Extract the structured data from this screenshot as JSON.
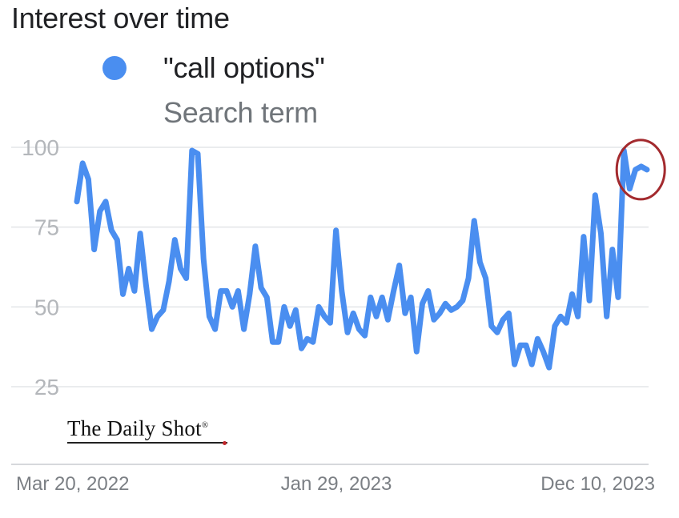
{
  "header": {
    "title": "Interest over time",
    "legend_label": "\"call options\"",
    "legend_sub": "Search term"
  },
  "watermark": {
    "text": "The Daily Shot",
    "mark": "®"
  },
  "colors": {
    "series": "#4a8ef0",
    "grid": "#e3e5e8",
    "highlight_circle": "#a32a2e"
  },
  "chart_data": {
    "type": "line",
    "title": "Interest over time",
    "series": [
      {
        "name": "\"call options\"",
        "x": [
          "2022-03-20",
          "2022-03-27",
          "2022-04-03",
          "2022-04-10",
          "2022-04-17",
          "2022-04-24",
          "2022-05-01",
          "2022-05-08",
          "2022-05-15",
          "2022-05-22",
          "2022-05-29",
          "2022-06-05",
          "2022-06-12",
          "2022-06-19",
          "2022-06-26",
          "2022-07-03",
          "2022-07-10",
          "2022-07-17",
          "2022-07-24",
          "2022-07-31",
          "2022-08-07",
          "2022-08-14",
          "2022-08-21",
          "2022-08-28",
          "2022-09-04",
          "2022-09-11",
          "2022-09-18",
          "2022-09-25",
          "2022-10-02",
          "2022-10-09",
          "2022-10-16",
          "2022-10-23",
          "2022-10-30",
          "2022-11-06",
          "2022-11-13",
          "2022-11-20",
          "2022-11-27",
          "2022-12-04",
          "2022-12-11",
          "2022-12-18",
          "2022-12-25",
          "2023-01-01",
          "2023-01-08",
          "2023-01-15",
          "2023-01-22",
          "2023-01-29",
          "2023-02-05",
          "2023-02-12",
          "2023-02-19",
          "2023-02-26",
          "2023-03-05",
          "2023-03-12",
          "2023-03-19",
          "2023-03-26",
          "2023-04-02",
          "2023-04-09",
          "2023-04-16",
          "2023-04-23",
          "2023-04-30",
          "2023-05-07",
          "2023-05-14",
          "2023-05-21",
          "2023-05-28",
          "2023-06-04",
          "2023-06-11",
          "2023-06-18",
          "2023-06-25",
          "2023-07-02",
          "2023-07-09",
          "2023-07-16",
          "2023-07-23",
          "2023-07-30",
          "2023-08-06",
          "2023-08-13",
          "2023-08-20",
          "2023-08-27",
          "2023-09-03",
          "2023-09-10",
          "2023-09-17",
          "2023-09-24",
          "2023-10-01",
          "2023-10-08",
          "2023-10-15",
          "2023-10-22",
          "2023-10-29",
          "2023-11-05",
          "2023-11-12",
          "2023-11-19",
          "2023-11-26",
          "2023-12-03",
          "2023-12-10",
          "2023-12-17",
          "2023-12-24",
          "2023-12-31",
          "2024-01-07",
          "2024-01-14",
          "2024-01-21",
          "2024-01-28",
          "2024-02-04",
          "2024-02-11"
        ],
        "values": [
          83,
          95,
          90,
          68,
          80,
          83,
          74,
          71,
          54,
          62,
          55,
          73,
          57,
          43,
          47,
          49,
          58,
          71,
          62,
          59,
          99,
          98,
          65,
          47,
          43,
          55,
          55,
          50,
          55,
          43,
          54,
          69,
          56,
          53,
          39,
          39,
          50,
          44,
          49,
          37,
          40,
          39,
          50,
          47,
          45,
          74,
          55,
          42,
          48,
          43,
          41,
          53,
          47,
          53,
          46,
          55,
          63,
          48,
          53,
          36,
          51,
          55,
          46,
          48,
          51,
          49,
          50,
          52,
          59,
          77,
          64,
          59,
          44,
          42,
          46,
          48,
          32,
          38,
          38,
          32,
          40,
          36,
          31,
          44,
          47,
          45,
          54,
          47,
          72,
          52,
          85,
          73,
          47,
          68,
          53,
          99,
          87,
          93,
          94,
          93
        ]
      }
    ],
    "x_ticks": [
      "Mar 20, 2022",
      "Jan 29, 2023",
      "Dec 10, 2023"
    ],
    "y_ticks": [
      25,
      50,
      75,
      100
    ],
    "ylim": [
      25,
      100
    ],
    "grid": true,
    "legend": "top-left",
    "annotation": "red circle around final peak"
  }
}
